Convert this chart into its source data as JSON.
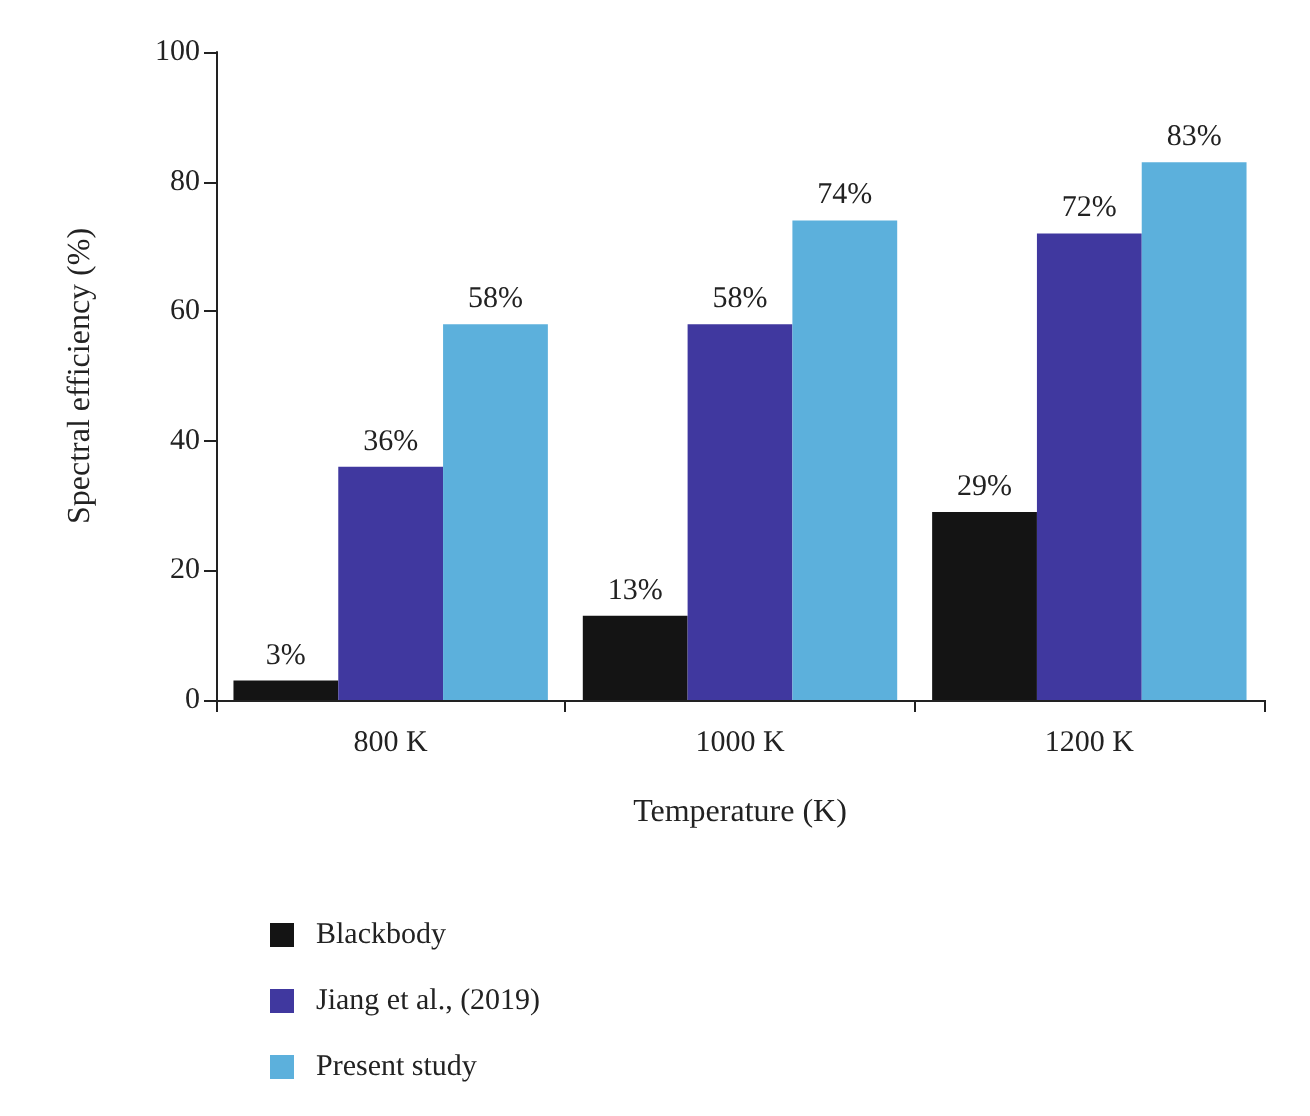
{
  "chart_data": {
    "type": "bar",
    "xlabel": "Temperature (K)",
    "ylabel": "Spectral efficiency (%)",
    "categories": [
      "800 K",
      "1000 K",
      "1200 K"
    ],
    "series": [
      {
        "name": "Blackbody",
        "color": "#141414",
        "values": [
          3,
          13,
          29
        ],
        "value_labels": [
          "3%",
          "13%",
          "29%"
        ]
      },
      {
        "name": "Jiang et al., (2019)",
        "color": "#40389f",
        "values": [
          36,
          58,
          72
        ],
        "value_labels": [
          "36%",
          "58%",
          "72%"
        ]
      },
      {
        "name": "Present study",
        "color": "#5cb0dc",
        "values": [
          58,
          74,
          83
        ],
        "value_labels": [
          "58%",
          "74%",
          "83%"
        ]
      }
    ],
    "ylim": [
      0,
      100
    ],
    "yticks": [
      0,
      20,
      40,
      60,
      80,
      100
    ],
    "grid": false,
    "legend": "bottom left"
  }
}
